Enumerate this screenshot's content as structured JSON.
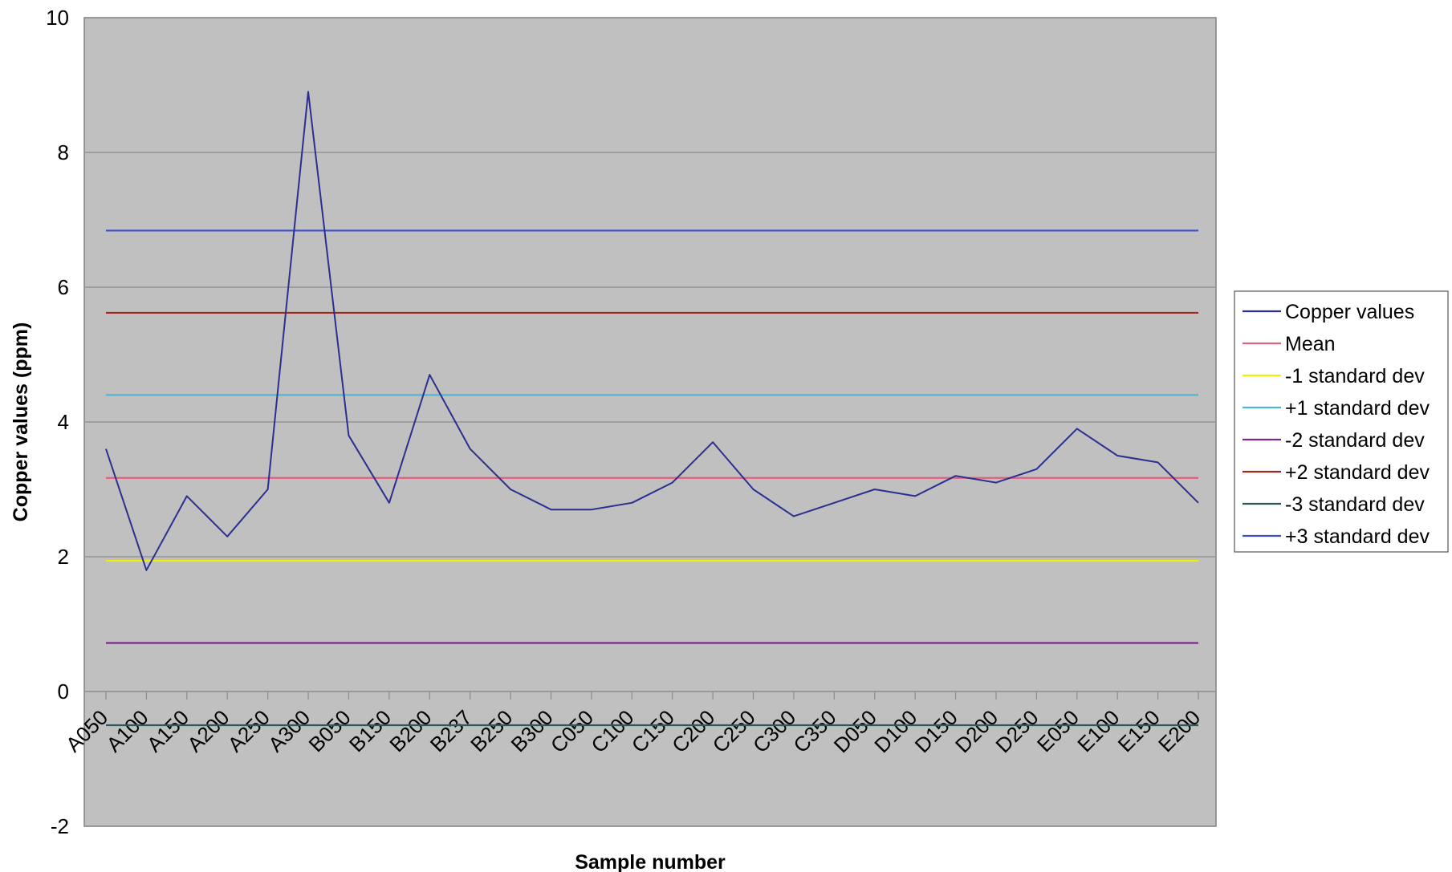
{
  "chart_data": {
    "type": "line",
    "title": "",
    "xlabel": "Sample number",
    "ylabel": "Copper values (ppm)",
    "ylim": [
      -2,
      10
    ],
    "yticks": [
      -2,
      0,
      2,
      4,
      6,
      8,
      10
    ],
    "grid": true,
    "legend_position": "right",
    "plot_background": "#c0c0c0",
    "categories": [
      "A050",
      "A100",
      "A150",
      "A200",
      "A250",
      "A300",
      "B050",
      "B150",
      "B200",
      "B237",
      "B250",
      "B300",
      "C050",
      "C100",
      "C150",
      "C200",
      "C250",
      "C300",
      "C350",
      "D050",
      "D100",
      "D150",
      "D200",
      "D250",
      "E050",
      "E100",
      "E150",
      "E200"
    ],
    "series": [
      {
        "name": "Copper values",
        "color": "#2b2f8f",
        "values": [
          3.6,
          1.8,
          2.9,
          2.3,
          3.0,
          8.9,
          3.8,
          2.8,
          4.7,
          3.6,
          3.0,
          2.7,
          2.7,
          2.8,
          3.1,
          3.7,
          3.0,
          2.6,
          2.8,
          3.0,
          2.9,
          3.2,
          3.1,
          3.3,
          3.9,
          3.5,
          3.4,
          2.8
        ]
      },
      {
        "name": "Mean",
        "color": "#e0607e",
        "constant": 3.17
      },
      {
        "name": "-1 standard dev",
        "color": "#f0f000",
        "constant": 1.94
      },
      {
        "name": "+1 standard dev",
        "color": "#4fb6d6",
        "constant": 4.4
      },
      {
        "name": "-2 standard dev",
        "color": "#7a2a8a",
        "constant": 0.72
      },
      {
        "name": "+2 standard dev",
        "color": "#a0281e",
        "constant": 5.62
      },
      {
        "name": "-3 standard dev",
        "color": "#2c5a5a",
        "constant": -0.5
      },
      {
        "name": "+3 standard dev",
        "color": "#3a4fc8",
        "constant": 6.84
      }
    ]
  }
}
